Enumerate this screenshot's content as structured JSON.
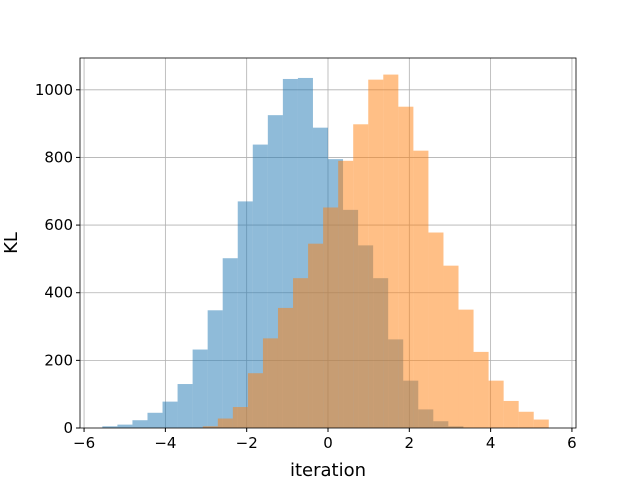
{
  "chart_data": {
    "type": "bar",
    "xlabel": "iteration",
    "ylabel": "KL",
    "xlim": [
      -6.1,
      6.1
    ],
    "ylim": [
      0,
      1094
    ],
    "grid": true,
    "xticks": [
      -6,
      -4,
      -2,
      0,
      2,
      4,
      6
    ],
    "xtick_labels": [
      "−6",
      "−4",
      "−2",
      "0",
      "2",
      "4",
      "6"
    ],
    "yticks": [
      0,
      200,
      400,
      600,
      800,
      1000
    ],
    "ytick_labels": [
      "0",
      "200",
      "400",
      "600",
      "800",
      "1000"
    ],
    "bin_width": 0.37,
    "series": [
      {
        "color": "#1f77b4",
        "opacity": 0.5,
        "bin_starts": [
          -5.55,
          -5.18,
          -4.81,
          -4.44,
          -4.07,
          -3.7,
          -3.33,
          -2.96,
          -2.59,
          -2.22,
          -1.85,
          -1.48,
          -1.11,
          -0.74,
          -0.37,
          0.0,
          0.37,
          0.74,
          1.11,
          1.48,
          1.85,
          2.22,
          2.59,
          2.96
        ],
        "values": [
          5,
          10,
          23,
          45,
          78,
          130,
          232,
          348,
          502,
          670,
          838,
          925,
          1032,
          1035,
          888,
          795,
          645,
          540,
          443,
          262,
          140,
          55,
          20,
          5
        ]
      },
      {
        "color": "#ff7f0e",
        "opacity": 0.5,
        "bin_starts": [
          -3.08,
          -2.71,
          -2.34,
          -1.97,
          -1.6,
          -1.23,
          -0.86,
          -0.49,
          -0.12,
          0.25,
          0.62,
          0.99,
          1.36,
          1.73,
          2.1,
          2.47,
          2.84,
          3.21,
          3.58,
          3.95,
          4.32,
          4.69,
          5.06
        ],
        "values": [
          5,
          28,
          62,
          162,
          265,
          355,
          443,
          545,
          652,
          790,
          898,
          1030,
          1045,
          950,
          820,
          578,
          480,
          350,
          225,
          140,
          80,
          48,
          25
        ]
      }
    ]
  }
}
